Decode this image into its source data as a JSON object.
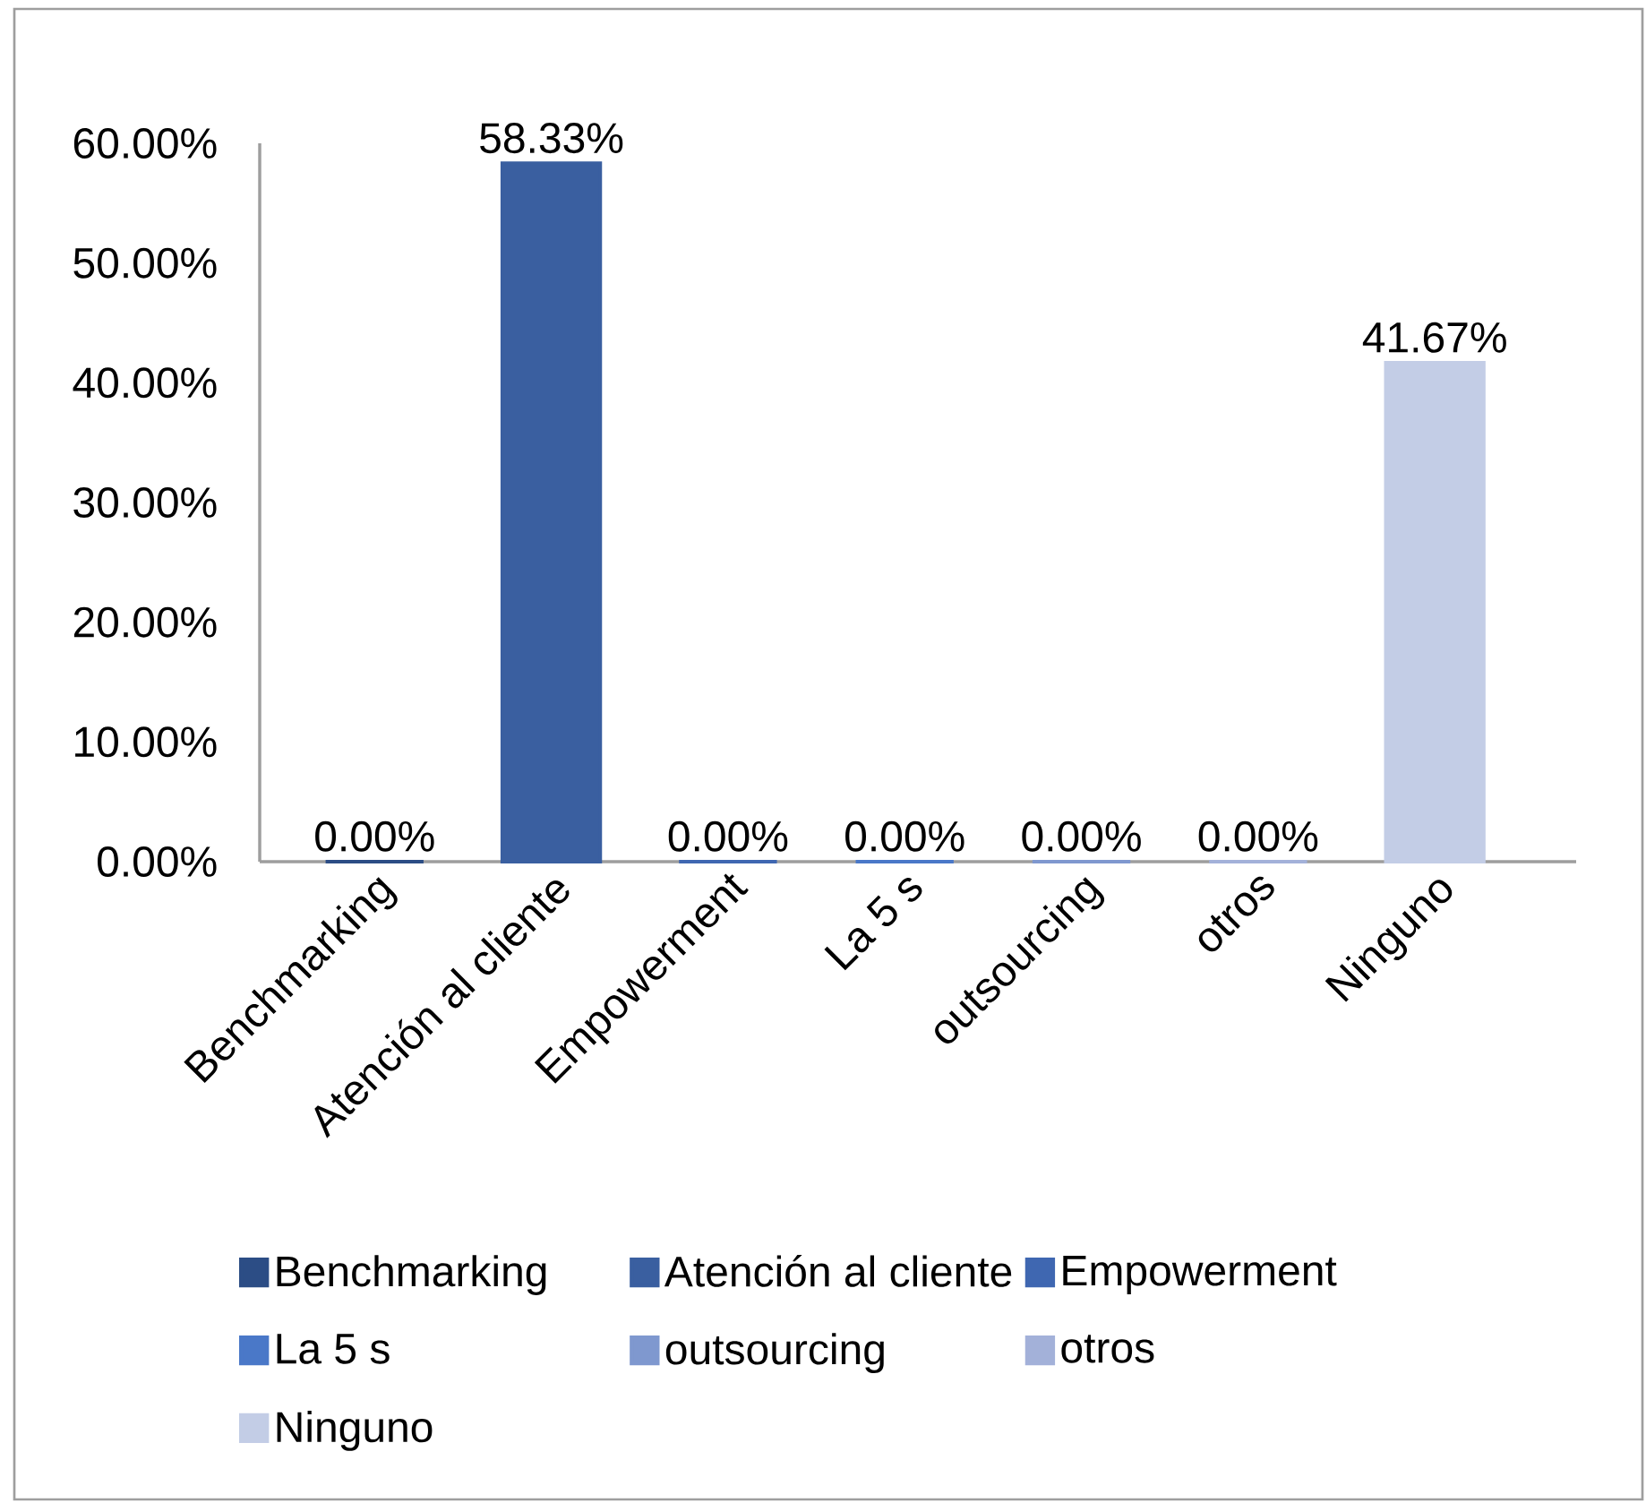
{
  "chart_data": {
    "type": "bar",
    "categories": [
      "Benchmarking",
      "Atención al cliente",
      "Empowerment",
      "La 5 s",
      "outsourcing",
      "otros",
      "Ninguno"
    ],
    "series": [
      {
        "name": "Benchmarking",
        "color": "#2c4d85",
        "values": [
          0,
          null,
          null,
          null,
          null,
          null,
          null
        ],
        "value_labels": [
          "0.00%",
          null,
          null,
          null,
          null,
          null,
          null
        ]
      },
      {
        "name": "Atención al cliente",
        "color": "#3a5fa0",
        "values": [
          null,
          58.33,
          null,
          null,
          null,
          null,
          null
        ],
        "value_labels": [
          null,
          "58.33%",
          null,
          null,
          null,
          null,
          null
        ]
      },
      {
        "name": "Empowerment",
        "color": "#3f67b1",
        "values": [
          null,
          null,
          0,
          null,
          null,
          null,
          null
        ],
        "value_labels": [
          null,
          null,
          "0.00%",
          null,
          null,
          null,
          null
        ]
      },
      {
        "name": "La 5 s",
        "color": "#4a78c8",
        "values": [
          null,
          null,
          null,
          0,
          null,
          null,
          null
        ],
        "value_labels": [
          null,
          null,
          null,
          "0.00%",
          null,
          null,
          null
        ]
      },
      {
        "name": "outsourcing",
        "color": "#7f98cf",
        "values": [
          null,
          null,
          null,
          null,
          0,
          null,
          null
        ],
        "value_labels": [
          null,
          null,
          null,
          null,
          "0.00%",
          null,
          null
        ]
      },
      {
        "name": "otros",
        "color": "#a3b1d9",
        "values": [
          null,
          null,
          null,
          null,
          null,
          0,
          null
        ],
        "value_labels": [
          null,
          null,
          null,
          null,
          null,
          "0.00%",
          null
        ]
      },
      {
        "name": "Ninguno",
        "color": "#c3cde6",
        "values": [
          null,
          null,
          null,
          null,
          null,
          null,
          41.67
        ],
        "value_labels": [
          null,
          null,
          null,
          null,
          null,
          null,
          "41.67%"
        ]
      }
    ],
    "ylim": [
      0,
      60
    ],
    "yticks": [
      {
        "value": 0,
        "label": "0.00%"
      },
      {
        "value": 10,
        "label": "10.00%"
      },
      {
        "value": 20,
        "label": "20.00%"
      },
      {
        "value": 30,
        "label": "30.00%"
      },
      {
        "value": 40,
        "label": "40.00%"
      },
      {
        "value": 50,
        "label": "50.00%"
      },
      {
        "value": 60,
        "label": "60.00%"
      }
    ],
    "legend": "bottom"
  }
}
